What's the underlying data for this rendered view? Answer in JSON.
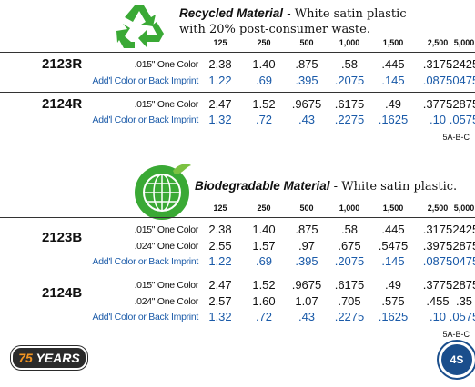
{
  "sections": [
    {
      "title": "Recycled Material",
      "description": [
        " - White satin plastic",
        "with 20% post-consumer waste."
      ],
      "columns": [
        "125",
        "250",
        "500",
        "1,000",
        "1,500",
        "2,500",
        "5,000"
      ],
      "products": [
        {
          "code": "2123R",
          "rows": [
            {
              "label": ".015\" One Color",
              "prices": [
                "2.38",
                "1.40",
                ".875",
                ".58",
                ".445",
                ".3175",
                ".2425"
              ]
            }
          ],
          "addl": {
            "label": "Add'l Color or Back Imprint",
            "prices": [
              "1.22",
              ".69",
              ".395",
              ".2075",
              ".145",
              ".0875",
              ".0475"
            ]
          }
        },
        {
          "code": "2124R",
          "rows": [
            {
              "label": ".015\" One Color",
              "prices": [
                "2.47",
                "1.52",
                ".9675",
                ".6175",
                ".49",
                ".3775",
                ".2875"
              ]
            }
          ],
          "addl": {
            "label": "Add'l Color or Back Imprint",
            "prices": [
              "1.32",
              ".72",
              ".43",
              ".2275",
              ".1625",
              ".10",
              ".0575"
            ]
          }
        }
      ],
      "code": "5A-B-C"
    },
    {
      "title": "Biodegradable Material",
      "description": [
        " - White satin plastic."
      ],
      "columns": [
        "125",
        "250",
        "500",
        "1,000",
        "1,500",
        "2,500",
        "5,000"
      ],
      "products": [
        {
          "code": "2123B",
          "rows": [
            {
              "label": ".015\" One Color",
              "prices": [
                "2.38",
                "1.40",
                ".875",
                ".58",
                ".445",
                ".3175",
                ".2425"
              ]
            },
            {
              "label": ".024\" One Color",
              "prices": [
                "2.55",
                "1.57",
                ".97",
                ".675",
                ".5475",
                ".3975",
                ".2875"
              ]
            }
          ],
          "addl": {
            "label": "Add'l Color or Back Imprint",
            "prices": [
              "1.22",
              ".69",
              ".395",
              ".2075",
              ".145",
              ".0875",
              ".0475"
            ]
          }
        },
        {
          "code": "2124B",
          "rows": [
            {
              "label": ".015\" One Color",
              "prices": [
                "2.47",
                "1.52",
                ".9675",
                ".6175",
                ".49",
                ".3775",
                ".2875"
              ]
            },
            {
              "label": ".024\" One Color",
              "prices": [
                "2.57",
                "1.60",
                "1.07",
                ".705",
                ".575",
                ".455",
                ".35"
              ]
            }
          ],
          "addl": {
            "label": "Add'l Color or Back Imprint",
            "prices": [
              "1.32",
              ".72",
              ".43",
              ".2275",
              ".1625",
              ".10",
              ".0575"
            ]
          }
        }
      ],
      "code": "5A-B-C"
    }
  ],
  "footer": {
    "badge_number": "75",
    "badge_text": "YEARS",
    "seal": "4S"
  }
}
